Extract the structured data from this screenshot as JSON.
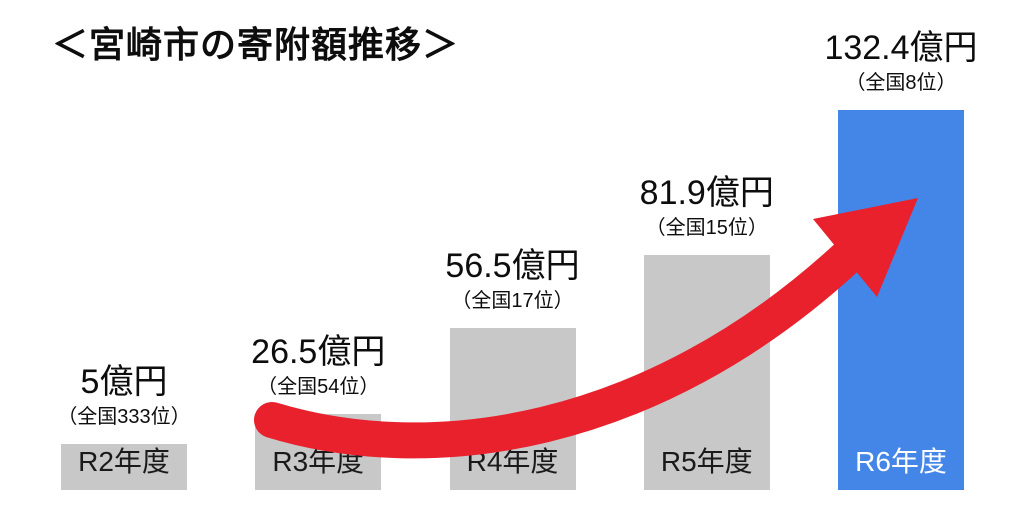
{
  "title": "＜宮崎市の寄附額推移＞",
  "colors": {
    "bar_default": "#c8c8c8",
    "bar_highlight": "#4486e8",
    "arrow": "#e8212d",
    "text": "#0d0d0d",
    "highlight_axis_text": "#ffffff"
  },
  "chart_data": {
    "type": "bar",
    "title": "＜宮崎市の寄附額推移＞",
    "unit": "億円",
    "categories": [
      "R2年度",
      "R3年度",
      "R4年度",
      "R5年度",
      "R6年度"
    ],
    "values": [
      5,
      26.5,
      56.5,
      81.9,
      132.4
    ],
    "ylim": [
      0,
      140
    ],
    "grid": false,
    "legend": false,
    "annotations": [
      "赤い上昇矢印（R3年度付近からR6年度の棒へ）"
    ],
    "bars": [
      {
        "category": "R2年度",
        "value": 5,
        "value_label": "5億円",
        "rank_label": "（全国333位）",
        "highlight": false
      },
      {
        "category": "R3年度",
        "value": 26.5,
        "value_label": "26.5億円",
        "rank_label": "（全国54位）",
        "highlight": false
      },
      {
        "category": "R4年度",
        "value": 56.5,
        "value_label": "56.5億円",
        "rank_label": "（全国17位）",
        "highlight": false
      },
      {
        "category": "R5年度",
        "value": 81.9,
        "value_label": "81.9億円",
        "rank_label": "（全国15位）",
        "highlight": false
      },
      {
        "category": "R6年度",
        "value": 132.4,
        "value_label": "132.4億円",
        "rank_label": "（全国8位）",
        "highlight": true
      }
    ]
  }
}
